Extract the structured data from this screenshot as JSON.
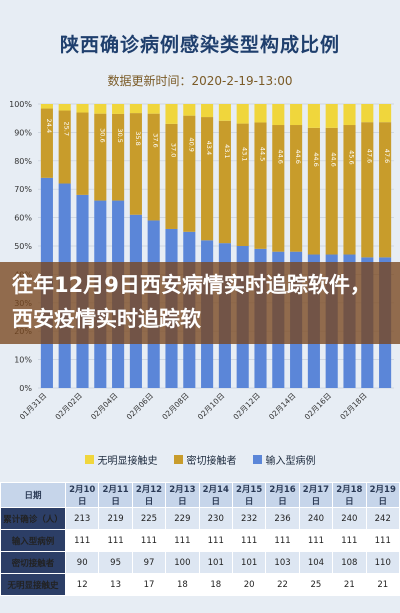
{
  "title": "陕西确诊病例感染类型构成比例",
  "subtitle": "数据更新时间：2020-2-19-13:00",
  "banner": "往年12月9日西安病情实时追踪软件，西安疫情实时追踪软",
  "chart_data": {
    "type": "bar",
    "stacked": true,
    "title": "陕西确诊病例感染类型构成比例",
    "categories": [
      "01月31日",
      "",
      "02月02日",
      "",
      "02月04日",
      "",
      "02月06日",
      "",
      "02月08日",
      "",
      "02月10日",
      "",
      "02月12日",
      "",
      "02月14日",
      "",
      "02月16日",
      "",
      "02月18日",
      ""
    ],
    "x_tick_labels": [
      "01月31日",
      "02月02日",
      "02月04日",
      "02月06日",
      "02月08日",
      "02月10日",
      "02月12日",
      "02月14日",
      "02月16日",
      "02月18日"
    ],
    "ylim": [
      0,
      100
    ],
    "y_ticks": [
      "0%",
      "10%",
      "20%",
      "30%",
      "40%",
      "50%",
      "60%",
      "70%",
      "80%",
      "90%",
      "100%"
    ],
    "series": [
      {
        "name": "输入型病例",
        "color": "#5b86d8",
        "values": [
          74,
          72,
          68,
          66,
          66,
          61,
          59,
          56,
          55,
          52,
          51,
          50,
          49,
          48,
          48,
          47,
          47,
          47,
          46,
          46
        ]
      },
      {
        "name": "密切接触者",
        "color": "#c89c2b",
        "values": [
          24.4,
          25.7,
          29,
          30.6,
          30.5,
          35.8,
          37.6,
          37.0,
          40.9,
          43.4,
          43.1,
          43.1,
          44.5,
          44.6,
          44.6,
          44.6,
          44.6,
          45.6,
          47.6,
          47.6
        ]
      },
      {
        "name": "无明显接触史",
        "color": "#f0d63c",
        "values": [
          1.6,
          2.3,
          3,
          3.4,
          3.5,
          3.2,
          3.4,
          7,
          4.1,
          4.6,
          5.9,
          6.9,
          6.5,
          7.4,
          7.4,
          8.4,
          8.4,
          7.4,
          6.4,
          6.4
        ]
      }
    ],
    "data_labels": [
      "24.4",
      "25.7",
      "",
      "30.6",
      "30.5",
      "35.8",
      "37.6",
      "37.0",
      "40.9",
      "43.4",
      "43.1",
      "43.1",
      "44.5",
      "44.6",
      "44.6",
      "44.6",
      "44.6",
      "45.6",
      "47.6",
      "47.6"
    ],
    "legend_position": "bottom",
    "grid": true
  },
  "table": {
    "header_label": "日期",
    "dates": [
      "2月10日",
      "2月11日",
      "2月12日",
      "2月13日",
      "2月14日",
      "2月15日",
      "2月16日",
      "2月17日",
      "2月18日",
      "2月19日"
    ],
    "rows": [
      {
        "label": "累计确诊（人）",
        "values": [
          "213",
          "219",
          "225",
          "229",
          "230",
          "232",
          "236",
          "240",
          "240",
          "242"
        ]
      },
      {
        "label": "输入型病例",
        "values": [
          "111",
          "111",
          "111",
          "111",
          "111",
          "111",
          "111",
          "111",
          "111",
          "111"
        ]
      },
      {
        "label": "密切接触者",
        "values": [
          "90",
          "95",
          "97",
          "100",
          "101",
          "101",
          "103",
          "104",
          "108",
          "110"
        ]
      },
      {
        "label": "无明显接触史",
        "values": [
          "12",
          "13",
          "17",
          "18",
          "18",
          "20",
          "22",
          "25",
          "21",
          "21"
        ]
      }
    ]
  }
}
